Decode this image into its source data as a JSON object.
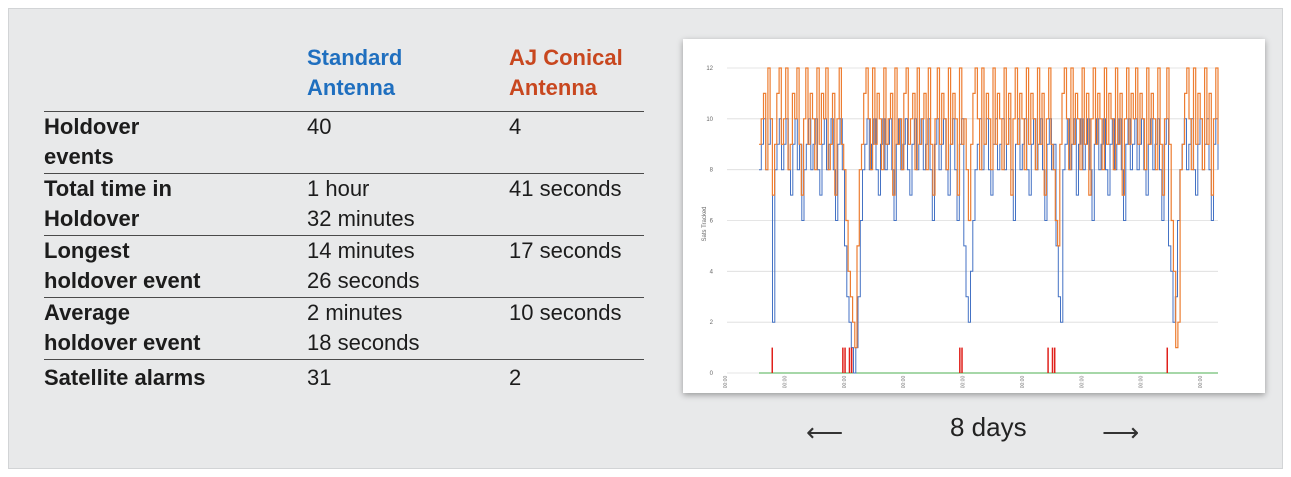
{
  "table": {
    "headers": [
      "",
      "Standard\nAntenna",
      "AJ Conical\nAntenna"
    ],
    "rows": [
      {
        "label": "Holdover\nevents",
        "standard": "40",
        "aj": "4"
      },
      {
        "label": "Total time in\nHoldover",
        "standard": "1 hour\n32 minutes",
        "aj": "41 seconds"
      },
      {
        "label": "Longest\nholdover event",
        "standard": "14 minutes\n26 seconds",
        "aj": "17 seconds"
      },
      {
        "label": "Average\nholdover event",
        "standard": "2 minutes\n18 seconds",
        "aj": "10 seconds"
      },
      {
        "label": "Satellite alarms",
        "standard": "31",
        "aj": "2"
      }
    ]
  },
  "colors": {
    "standard_header": "#1f6fbf",
    "aj_header": "#c8471f",
    "standard_series": "#4472c4",
    "aj_series": "#ed7d31",
    "alarm_series": "#e0201b",
    "baseline_series": "#4caf50"
  },
  "chart_data": {
    "type": "line",
    "title": "",
    "xlabel": "",
    "ylabel": "Sats Tracked",
    "ylim": [
      0,
      12
    ],
    "yticks": [
      0,
      2,
      4,
      6,
      8,
      10,
      12
    ],
    "xtick_labels": [
      "00:00",
      "00:00",
      "00:00",
      "00:00",
      "00:00",
      "00:00",
      "00:00",
      "00:00",
      "00:00"
    ],
    "grid": true,
    "legend": "none",
    "series": [
      {
        "key": "standard",
        "values": [
          8,
          9,
          10,
          8,
          9,
          10,
          2,
          8,
          9,
          10,
          8,
          9,
          10,
          8,
          7,
          9,
          10,
          8,
          9,
          6,
          8,
          9,
          10,
          8,
          9,
          10,
          8,
          7,
          9,
          10,
          8,
          9,
          10,
          8,
          6,
          9,
          10,
          8,
          5,
          3,
          2,
          1,
          0,
          1,
          3,
          6,
          8,
          9,
          10,
          8,
          9,
          10,
          8,
          7,
          9,
          10,
          8,
          9,
          10,
          8,
          6,
          9,
          10,
          8,
          9,
          10,
          8,
          7,
          9,
          10,
          8,
          9,
          10,
          8,
          9,
          10,
          8,
          6,
          9,
          10,
          8,
          9,
          10,
          8,
          7,
          9,
          10,
          8,
          6,
          9,
          10,
          5,
          3,
          2,
          4,
          6,
          8,
          9,
          10,
          8,
          9,
          10,
          8,
          7,
          9,
          10,
          8,
          9,
          10,
          8,
          9,
          10,
          8,
          6,
          9,
          10,
          8,
          9,
          10,
          8,
          7,
          9,
          10,
          8,
          9,
          10,
          8,
          6,
          9,
          10,
          8,
          9,
          5,
          3,
          2,
          8,
          9,
          10,
          8,
          9,
          10,
          7,
          9,
          10,
          8,
          9,
          10,
          8,
          6,
          9,
          10,
          8,
          9,
          10,
          8,
          7,
          9,
          10,
          8,
          9,
          10,
          8,
          6,
          9,
          10,
          8,
          9,
          10,
          8,
          9,
          10,
          8,
          7,
          9,
          10,
          8,
          9,
          10,
          8,
          6,
          9,
          10,
          5,
          4,
          2,
          3,
          6,
          8,
          9,
          10,
          8,
          9,
          10,
          8,
          7,
          9,
          10,
          8,
          9,
          10,
          8,
          6,
          9,
          10,
          8
        ]
      },
      {
        "key": "aj",
        "values": [
          9,
          10,
          11,
          8,
          12,
          10,
          7,
          9,
          11,
          12,
          9,
          10,
          12,
          8,
          9,
          11,
          10,
          12,
          9,
          7,
          10,
          12,
          9,
          11,
          10,
          8,
          12,
          9,
          11,
          10,
          12,
          8,
          9,
          11,
          7,
          10,
          12,
          9,
          8,
          6,
          4,
          3,
          2,
          1,
          5,
          8,
          9,
          11,
          12,
          10,
          8,
          12,
          9,
          11,
          10,
          8,
          12,
          9,
          10,
          11,
          7,
          12,
          9,
          10,
          8,
          11,
          12,
          9,
          10,
          11,
          8,
          12,
          9,
          10,
          11,
          8,
          12,
          9,
          7,
          10,
          12,
          9,
          11,
          10,
          8,
          12,
          9,
          11,
          10,
          7,
          12,
          9,
          10,
          8,
          6,
          9,
          11,
          12,
          10,
          8,
          12,
          9,
          11,
          10,
          8,
          12,
          9,
          11,
          10,
          8,
          12,
          9,
          11,
          7,
          10,
          12,
          9,
          11,
          10,
          8,
          12,
          9,
          11,
          10,
          8,
          12,
          9,
          11,
          7,
          10,
          12,
          9,
          8,
          6,
          5,
          9,
          11,
          12,
          10,
          8,
          12,
          9,
          11,
          10,
          8,
          12,
          9,
          11,
          7,
          10,
          12,
          9,
          11,
          10,
          8,
          12,
          9,
          11,
          10,
          8,
          12,
          9,
          11,
          7,
          10,
          12,
          9,
          11,
          10,
          12,
          9,
          11,
          10,
          8,
          12,
          9,
          11,
          10,
          8,
          12,
          9,
          7,
          10,
          12,
          9,
          6,
          4,
          1,
          2,
          8,
          9,
          11,
          12,
          10,
          8,
          12,
          9,
          11,
          10,
          8,
          12,
          9,
          11,
          7,
          10,
          12,
          9
        ]
      },
      {
        "key": "alarm",
        "values": [
          0,
          0,
          0,
          0,
          0,
          0,
          1,
          0,
          0,
          0,
          0,
          0,
          0,
          0,
          0,
          0,
          0,
          0,
          0,
          0,
          0,
          0,
          0,
          0,
          0,
          0,
          0,
          0,
          0,
          0,
          0,
          0,
          0,
          0,
          0,
          0,
          0,
          0,
          1,
          1,
          0,
          1,
          1,
          0,
          0,
          0,
          0,
          0,
          0,
          0,
          0,
          0,
          0,
          0,
          0,
          0,
          0,
          0,
          0,
          0,
          0,
          0,
          0,
          0,
          0,
          0,
          0,
          0,
          0,
          0,
          0,
          0,
          0,
          0,
          0,
          0,
          0,
          0,
          0,
          0,
          0,
          0,
          0,
          0,
          0,
          0,
          0,
          0,
          0,
          0,
          0,
          1,
          1,
          0,
          0,
          0,
          0,
          0,
          0,
          0,
          0,
          0,
          0,
          0,
          0,
          0,
          0,
          0,
          0,
          0,
          0,
          0,
          0,
          0,
          0,
          0,
          0,
          0,
          0,
          0,
          0,
          0,
          0,
          0,
          0,
          0,
          0,
          0,
          0,
          0,
          0,
          1,
          0,
          1,
          1,
          0,
          0,
          0,
          0,
          0,
          0,
          0,
          0,
          0,
          0,
          0,
          0,
          0,
          0,
          0,
          0,
          0,
          0,
          0,
          0,
          0,
          0,
          0,
          0,
          0,
          0,
          0,
          0,
          0,
          0,
          0,
          0,
          0,
          0,
          0,
          0,
          0,
          0,
          0,
          0,
          0,
          0,
          0,
          0,
          0,
          0,
          0,
          0,
          0,
          0,
          1,
          0,
          0,
          0,
          0,
          0,
          0,
          0,
          0,
          0,
          0,
          0,
          0,
          0,
          0,
          0,
          0,
          0,
          0,
          0,
          0,
          0,
          0,
          0
        ]
      }
    ]
  },
  "footer": {
    "left_arrow": "⟵",
    "label": "8 days",
    "right_arrow": "⟶"
  }
}
